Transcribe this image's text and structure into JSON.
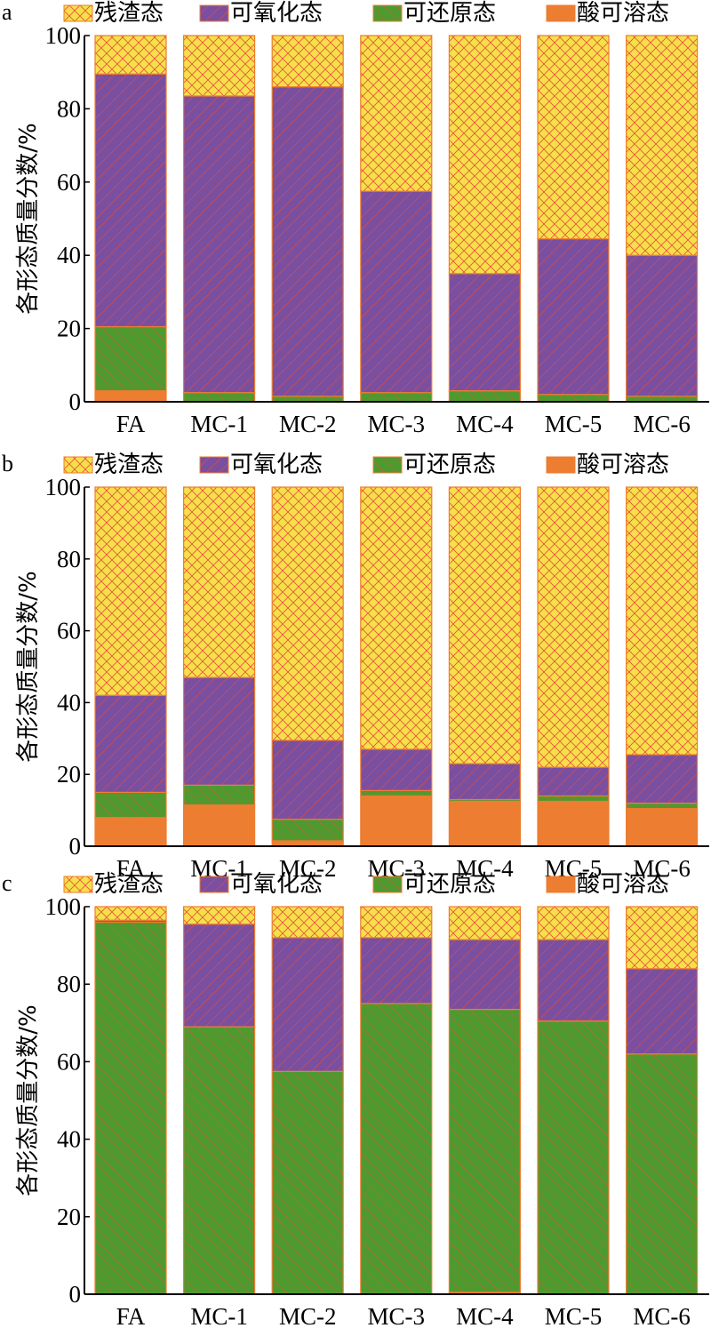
{
  "chart_data": [
    {
      "type": "bar",
      "stacked": true,
      "panel_label": "a",
      "ylabel": "各形态质量分数/%",
      "ylim": [
        0,
        100
      ],
      "yticks": [
        0,
        20,
        40,
        60,
        80,
        100
      ],
      "categories": [
        "FA",
        "MC-1",
        "MC-2",
        "MC-3",
        "MC-4",
        "MC-5",
        "MC-6"
      ],
      "legend_position": "top",
      "series": [
        {
          "name": "酸可溶态",
          "color": "#ed7d31",
          "values": [
            3,
            0,
            0,
            0,
            0,
            0,
            0
          ]
        },
        {
          "name": "可还原态",
          "color": "#4e9a2f",
          "values": [
            17.5,
            2.5,
            1.5,
            2.5,
            3,
            2,
            1.5
          ]
        },
        {
          "name": "可氧化态",
          "color": "#7b4fa0",
          "values": [
            69,
            81,
            84.5,
            55,
            32,
            42.5,
            38.5
          ]
        },
        {
          "name": "残渣态",
          "color": "#f5e04a",
          "values": [
            10.5,
            16.5,
            14,
            42.5,
            65,
            55.5,
            60
          ]
        }
      ]
    },
    {
      "type": "bar",
      "stacked": true,
      "panel_label": "b",
      "ylabel": "各形态质量分数/%",
      "ylim": [
        0,
        100
      ],
      "yticks": [
        0,
        20,
        40,
        60,
        80,
        100
      ],
      "categories": [
        "FA",
        "MC-1",
        "MC-2",
        "MC-3",
        "MC-4",
        "MC-5",
        "MC-6"
      ],
      "legend_position": "top",
      "series": [
        {
          "name": "酸可溶态",
          "color": "#ed7d31",
          "values": [
            8,
            11.5,
            1.5,
            14,
            12.5,
            12.5,
            10.5
          ]
        },
        {
          "name": "可还原态",
          "color": "#4e9a2f",
          "values": [
            7,
            5.5,
            6,
            1.5,
            0.5,
            1.5,
            1.5
          ]
        },
        {
          "name": "可氧化态",
          "color": "#7b4fa0",
          "values": [
            27,
            30,
            22,
            11.5,
            10,
            8,
            13.5
          ]
        },
        {
          "name": "残渣态",
          "color": "#f5e04a",
          "values": [
            58,
            53,
            70.5,
            73,
            77,
            78,
            74.5
          ]
        }
      ]
    },
    {
      "type": "bar",
      "stacked": true,
      "panel_label": "c",
      "ylabel": "各形态质量分数/%",
      "ylim": [
        0,
        100
      ],
      "yticks": [
        0,
        20,
        40,
        60,
        80,
        100
      ],
      "categories": [
        "FA",
        "MC-1",
        "MC-2",
        "MC-3",
        "MC-4",
        "MC-5",
        "MC-6"
      ],
      "legend_position": "top",
      "series": [
        {
          "name": "酸可溶态",
          "color": "#ed7d31",
          "values": [
            0,
            0,
            0,
            0,
            0.5,
            0,
            0
          ]
        },
        {
          "name": "可还原态",
          "color": "#4e9a2f",
          "values": [
            96,
            69,
            57.5,
            75,
            73,
            70.5,
            62
          ]
        },
        {
          "name": "可氧化态",
          "color": "#7b4fa0",
          "values": [
            0.5,
            26.5,
            34.5,
            17,
            18,
            21,
            22
          ]
        },
        {
          "name": "残渣态",
          "color": "#f5e04a",
          "values": [
            3.5,
            4.5,
            8,
            8,
            8.5,
            8.5,
            16
          ]
        }
      ]
    }
  ],
  "legend_order": [
    "残渣态",
    "可氧化态",
    "可还原态",
    "酸可溶态"
  ]
}
